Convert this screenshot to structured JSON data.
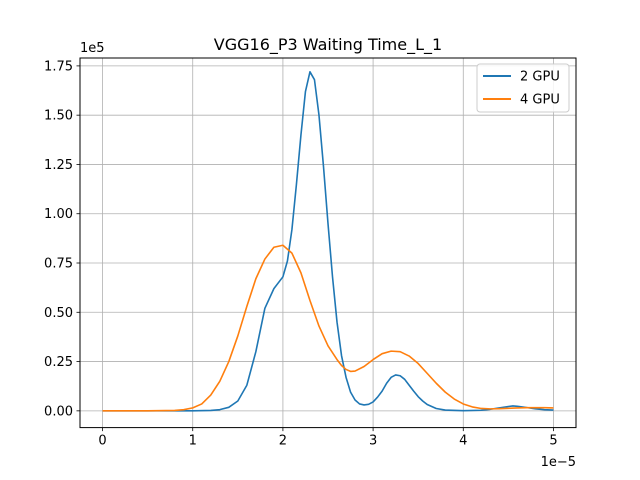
{
  "chart_data": {
    "type": "line",
    "title": "VGG16_P3 Waiting Time_L_1",
    "xlabel": "",
    "ylabel": "",
    "x_offset_label": "1e−5",
    "y_offset_label": "1e5",
    "xlim": [
      -2.5,
      52.5
    ],
    "ylim": [
      -0.085,
      1.79
    ],
    "x_ticks": [
      0,
      10,
      20,
      30,
      40,
      50
    ],
    "x_tick_labels": [
      "0",
      "1",
      "2",
      "3",
      "4",
      "5"
    ],
    "y_ticks": [
      0.0,
      0.25,
      0.5,
      0.75,
      1.0,
      1.25,
      1.5,
      1.75
    ],
    "y_tick_labels": [
      "0.00",
      "0.25",
      "0.50",
      "0.75",
      "1.00",
      "1.25",
      "1.50",
      "1.75"
    ],
    "grid": true,
    "legend_position": "top-right",
    "series": [
      {
        "name": "2 GPU",
        "color": "#1f77b4",
        "points": [
          [
            0,
            0
          ],
          [
            5,
            0
          ],
          [
            10,
            0
          ],
          [
            12,
            0.002
          ],
          [
            13,
            0.006
          ],
          [
            14,
            0.018
          ],
          [
            15,
            0.05
          ],
          [
            16,
            0.13
          ],
          [
            17,
            0.3
          ],
          [
            18,
            0.52
          ],
          [
            19,
            0.62
          ],
          [
            20,
            0.68
          ],
          [
            20.5,
            0.76
          ],
          [
            21,
            0.92
          ],
          [
            21.5,
            1.15
          ],
          [
            22,
            1.4
          ],
          [
            22.5,
            1.62
          ],
          [
            23,
            1.72
          ],
          [
            23.5,
            1.68
          ],
          [
            24,
            1.5
          ],
          [
            24.5,
            1.24
          ],
          [
            25,
            0.95
          ],
          [
            25.5,
            0.68
          ],
          [
            26,
            0.45
          ],
          [
            26.5,
            0.28
          ],
          [
            27,
            0.17
          ],
          [
            27.5,
            0.095
          ],
          [
            28,
            0.055
          ],
          [
            28.5,
            0.035
          ],
          [
            29,
            0.03
          ],
          [
            29.5,
            0.033
          ],
          [
            30,
            0.045
          ],
          [
            30.5,
            0.07
          ],
          [
            31,
            0.1
          ],
          [
            31.5,
            0.14
          ],
          [
            32,
            0.17
          ],
          [
            32.5,
            0.182
          ],
          [
            33,
            0.178
          ],
          [
            33.5,
            0.16
          ],
          [
            34,
            0.13
          ],
          [
            34.5,
            0.1
          ],
          [
            35,
            0.072
          ],
          [
            35.5,
            0.05
          ],
          [
            36,
            0.032
          ],
          [
            37,
            0.012
          ],
          [
            38,
            0.004
          ],
          [
            40,
            0.001
          ],
          [
            42,
            0.003
          ],
          [
            43,
            0.008
          ],
          [
            44,
            0.015
          ],
          [
            45,
            0.022
          ],
          [
            45.5,
            0.025
          ],
          [
            46,
            0.023
          ],
          [
            47,
            0.017
          ],
          [
            48,
            0.01
          ],
          [
            49,
            0.006
          ],
          [
            50,
            0.004
          ]
        ]
      },
      {
        "name": "4 GPU",
        "color": "#ff7f0e",
        "points": [
          [
            0,
            0
          ],
          [
            5,
            0
          ],
          [
            8,
            0.002
          ],
          [
            9,
            0.006
          ],
          [
            10,
            0.015
          ],
          [
            11,
            0.035
          ],
          [
            12,
            0.08
          ],
          [
            13,
            0.15
          ],
          [
            14,
            0.25
          ],
          [
            15,
            0.38
          ],
          [
            16,
            0.53
          ],
          [
            17,
            0.67
          ],
          [
            18,
            0.77
          ],
          [
            19,
            0.83
          ],
          [
            20,
            0.84
          ],
          [
            21,
            0.8
          ],
          [
            22,
            0.7
          ],
          [
            23,
            0.56
          ],
          [
            24,
            0.43
          ],
          [
            25,
            0.33
          ],
          [
            26,
            0.26
          ],
          [
            26.5,
            0.23
          ],
          [
            27,
            0.21
          ],
          [
            27.5,
            0.2
          ],
          [
            28,
            0.202
          ],
          [
            29,
            0.225
          ],
          [
            30,
            0.26
          ],
          [
            31,
            0.29
          ],
          [
            32,
            0.303
          ],
          [
            33,
            0.3
          ],
          [
            34,
            0.278
          ],
          [
            35,
            0.24
          ],
          [
            36,
            0.19
          ],
          [
            37,
            0.14
          ],
          [
            38,
            0.095
          ],
          [
            39,
            0.06
          ],
          [
            40,
            0.035
          ],
          [
            41,
            0.02
          ],
          [
            42,
            0.012
          ],
          [
            43,
            0.01
          ],
          [
            44,
            0.011
          ],
          [
            45,
            0.013
          ],
          [
            46,
            0.015
          ],
          [
            47,
            0.016
          ],
          [
            48,
            0.016
          ],
          [
            49,
            0.016
          ],
          [
            50,
            0.015
          ]
        ]
      }
    ]
  }
}
